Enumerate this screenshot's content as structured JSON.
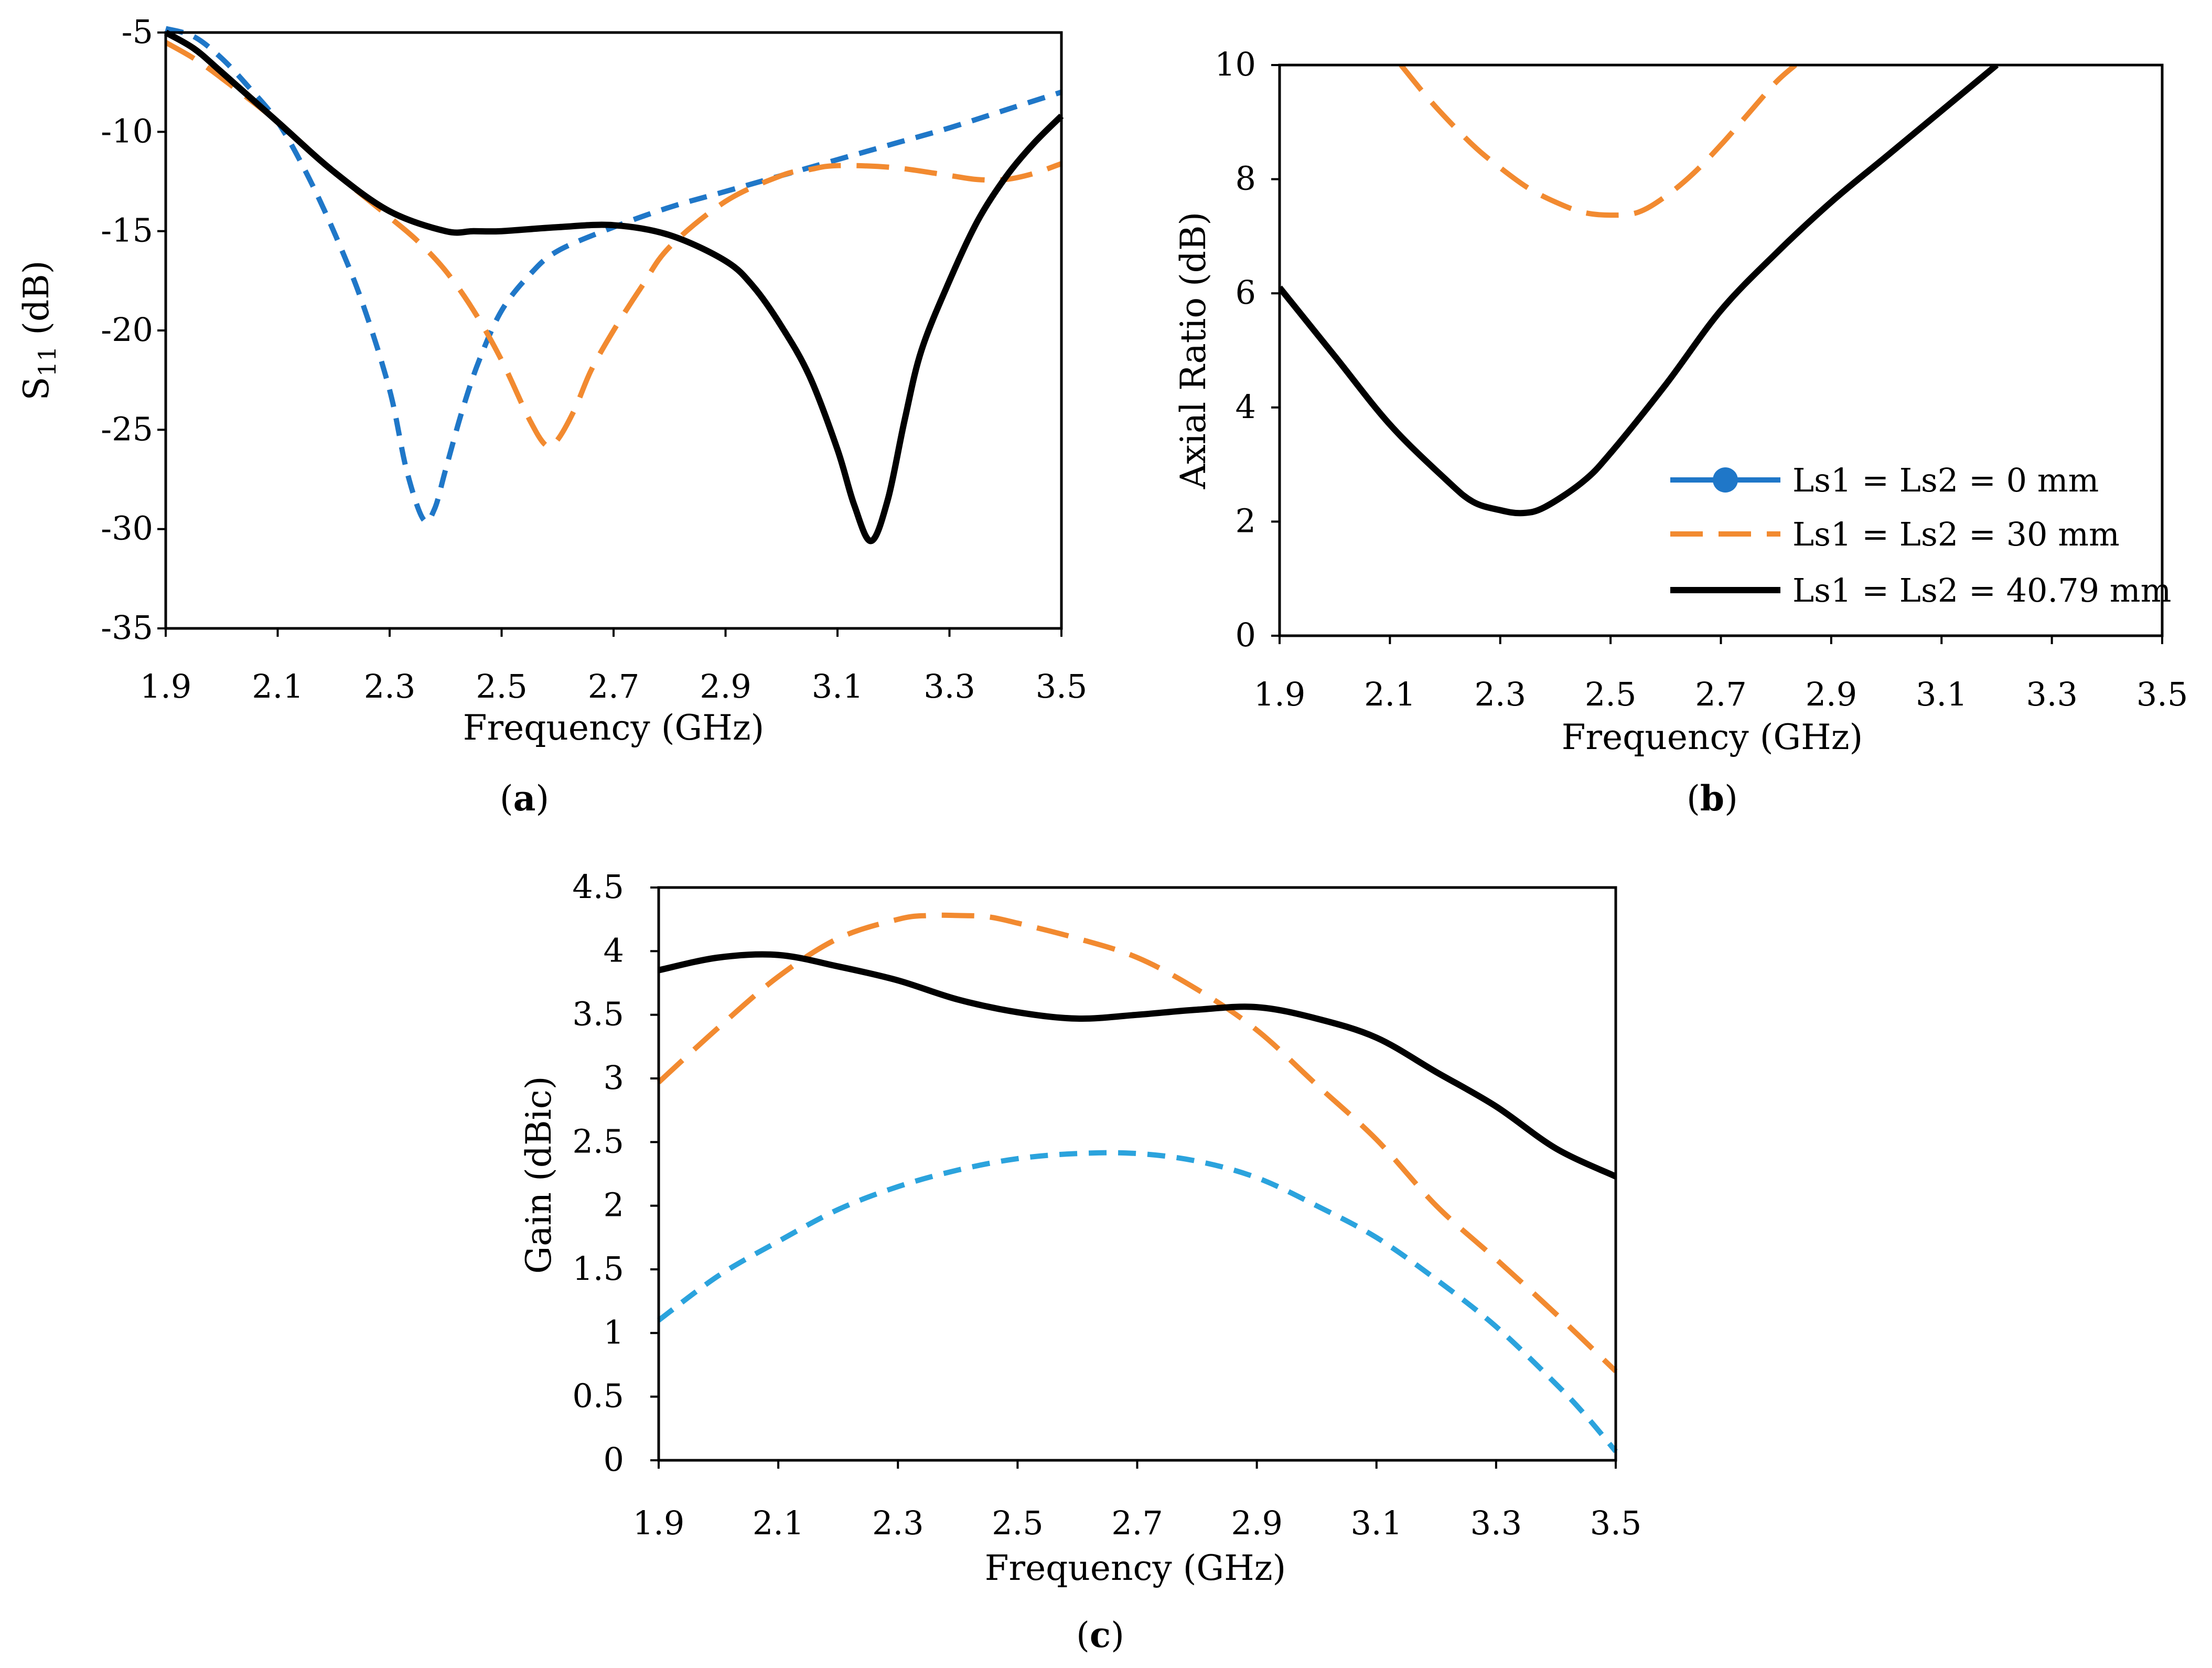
{
  "chart_data": [
    {
      "id": "a",
      "type": "line",
      "caption_letter": "a",
      "title": "",
      "xlabel": "Frequency (GHz)",
      "ylabel_main": "S",
      "ylabel_sub": "11",
      "ylabel_unit": " (dB)",
      "xlim": [
        1.9,
        3.5
      ],
      "ylim": [
        -35,
        -5
      ],
      "xticks": [
        1.9,
        2.1,
        2.3,
        2.5,
        2.7,
        2.9,
        3.1,
        3.3,
        3.5
      ],
      "yticks": [
        -35,
        -30,
        -25,
        -20,
        -15,
        -10,
        -5
      ],
      "grid": false,
      "series": [
        {
          "name": "Ls1 = Ls2 = 0 mm",
          "color": "#1f77c8",
          "dash": "short",
          "x": [
            1.9,
            1.95,
            2.0,
            2.05,
            2.1,
            2.15,
            2.2,
            2.25,
            2.3,
            2.33,
            2.36,
            2.38,
            2.4,
            2.43,
            2.46,
            2.5,
            2.55,
            2.6,
            2.7,
            2.8,
            2.9,
            3.0,
            3.1,
            3.2,
            3.3,
            3.4,
            3.5
          ],
          "y": [
            -4.8,
            -5.2,
            -6.3,
            -7.8,
            -9.5,
            -12.0,
            -15.0,
            -18.5,
            -23.0,
            -27.0,
            -29.5,
            -29.0,
            -27.0,
            -24.0,
            -21.5,
            -19.0,
            -17.2,
            -16.0,
            -14.8,
            -13.8,
            -13.0,
            -12.2,
            -11.4,
            -10.6,
            -9.8,
            -8.9,
            -8.0
          ]
        },
        {
          "name": "Ls1 = Ls2 = 30 mm",
          "color": "#f28a30",
          "dash": "long",
          "x": [
            1.9,
            1.95,
            2.0,
            2.1,
            2.2,
            2.3,
            2.35,
            2.4,
            2.45,
            2.5,
            2.55,
            2.58,
            2.6,
            2.63,
            2.66,
            2.7,
            2.75,
            2.8,
            2.9,
            3.0,
            3.05,
            3.1,
            3.2,
            3.3,
            3.35,
            3.4,
            3.45,
            3.5
          ],
          "y": [
            -5.5,
            -6.3,
            -7.3,
            -9.5,
            -12.0,
            -14.3,
            -15.5,
            -17.0,
            -19.0,
            -21.5,
            -24.5,
            -25.8,
            -25.5,
            -24.0,
            -22.0,
            -20.0,
            -17.8,
            -15.8,
            -13.5,
            -12.2,
            -11.9,
            -11.7,
            -11.8,
            -12.2,
            -12.4,
            -12.4,
            -12.1,
            -11.6
          ]
        },
        {
          "name": "Ls1 = Ls2 = 40.79 mm",
          "color": "#000000",
          "dash": "solid",
          "x": [
            1.9,
            1.95,
            2.0,
            2.1,
            2.2,
            2.3,
            2.4,
            2.45,
            2.5,
            2.6,
            2.7,
            2.8,
            2.9,
            2.95,
            3.0,
            3.05,
            3.1,
            3.13,
            3.16,
            3.19,
            3.22,
            3.25,
            3.3,
            3.35,
            3.4,
            3.45,
            3.5
          ],
          "y": [
            -5.0,
            -5.8,
            -7.0,
            -9.5,
            -12.0,
            -14.0,
            -15.0,
            -15.0,
            -15.0,
            -14.8,
            -14.7,
            -15.2,
            -16.5,
            -17.8,
            -19.8,
            -22.3,
            -26.0,
            -28.8,
            -30.6,
            -28.5,
            -24.5,
            -21.0,
            -17.5,
            -14.5,
            -12.3,
            -10.6,
            -9.2
          ]
        }
      ]
    },
    {
      "id": "b",
      "type": "line",
      "caption_letter": "b",
      "title": "",
      "xlabel": "Frequency (GHz)",
      "ylabel": "Axial Ratio (dB)",
      "xlim": [
        1.9,
        3.5
      ],
      "ylim": [
        0,
        10
      ],
      "xticks": [
        1.9,
        2.1,
        2.3,
        2.5,
        2.7,
        2.9,
        3.1,
        3.3,
        3.5
      ],
      "yticks": [
        0,
        2,
        4,
        6,
        8,
        10
      ],
      "grid": false,
      "legend_position": "bottom-right",
      "series": [
        {
          "name": "Ls1 = Ls2 = 0 mm",
          "color": "#1f77c8",
          "dash": "solid-marker",
          "x": [],
          "y": []
        },
        {
          "name": "Ls1 = Ls2 = 30 mm",
          "color": "#f28a30",
          "dash": "long",
          "x": [
            2.12,
            2.18,
            2.25,
            2.3,
            2.35,
            2.4,
            2.45,
            2.5,
            2.55,
            2.6,
            2.65,
            2.7,
            2.75,
            2.8,
            2.835
          ],
          "y": [
            10.0,
            9.3,
            8.6,
            8.2,
            7.85,
            7.6,
            7.42,
            7.37,
            7.42,
            7.7,
            8.1,
            8.6,
            9.15,
            9.7,
            10.0
          ]
        },
        {
          "name": "Ls1 = Ls2 = 40.79 mm",
          "color": "#000000",
          "dash": "solid",
          "x": [
            1.9,
            2.0,
            2.1,
            2.2,
            2.25,
            2.3,
            2.34,
            2.38,
            2.45,
            2.5,
            2.6,
            2.7,
            2.8,
            2.9,
            3.0,
            3.1,
            3.2
          ],
          "y": [
            6.1,
            4.9,
            3.7,
            2.75,
            2.35,
            2.2,
            2.15,
            2.25,
            2.7,
            3.2,
            4.4,
            5.7,
            6.7,
            7.6,
            8.4,
            9.2,
            10.0
          ]
        }
      ]
    },
    {
      "id": "c",
      "type": "line",
      "caption_letter": "c",
      "title": "",
      "xlabel": "Frequency (GHz)",
      "ylabel": "Gain (dBic)",
      "xlim": [
        1.9,
        3.5
      ],
      "ylim": [
        0,
        4.5
      ],
      "xticks": [
        1.9,
        2.1,
        2.3,
        2.5,
        2.7,
        2.9,
        3.1,
        3.3,
        3.5
      ],
      "yticks": [
        0,
        0.5,
        1,
        1.5,
        2,
        2.5,
        3,
        3.5,
        4,
        4.5
      ],
      "grid": false,
      "series": [
        {
          "name": "Ls1 = Ls2 = 0 mm",
          "color": "#2ba3dd",
          "dash": "short",
          "x": [
            1.9,
            2.0,
            2.1,
            2.2,
            2.3,
            2.4,
            2.5,
            2.6,
            2.7,
            2.8,
            2.9,
            3.0,
            3.1,
            3.2,
            3.3,
            3.4,
            3.45,
            3.5
          ],
          "y": [
            1.1,
            1.45,
            1.72,
            1.97,
            2.15,
            2.28,
            2.37,
            2.41,
            2.41,
            2.35,
            2.22,
            2.0,
            1.75,
            1.42,
            1.05,
            0.6,
            0.35,
            0.07
          ]
        },
        {
          "name": "Ls1 = Ls2 = 30 mm",
          "color": "#f28a30",
          "dash": "long",
          "x": [
            1.9,
            2.0,
            2.1,
            2.2,
            2.3,
            2.35,
            2.4,
            2.45,
            2.5,
            2.6,
            2.7,
            2.8,
            2.9,
            3.0,
            3.1,
            3.2,
            3.3,
            3.4,
            3.5
          ],
          "y": [
            2.97,
            3.4,
            3.8,
            4.1,
            4.25,
            4.28,
            4.28,
            4.27,
            4.22,
            4.1,
            3.95,
            3.7,
            3.38,
            2.95,
            2.52,
            2.0,
            1.58,
            1.15,
            0.7
          ]
        },
        {
          "name": "Ls1 = Ls2 = 40.79 mm",
          "color": "#000000",
          "dash": "solid",
          "x": [
            1.9,
            2.0,
            2.1,
            2.2,
            2.3,
            2.4,
            2.5,
            2.6,
            2.7,
            2.8,
            2.9,
            3.0,
            3.1,
            3.2,
            3.3,
            3.4,
            3.5
          ],
          "y": [
            3.85,
            3.95,
            3.97,
            3.88,
            3.77,
            3.62,
            3.52,
            3.47,
            3.5,
            3.54,
            3.56,
            3.47,
            3.32,
            3.05,
            2.78,
            2.45,
            2.23
          ]
        }
      ]
    }
  ]
}
